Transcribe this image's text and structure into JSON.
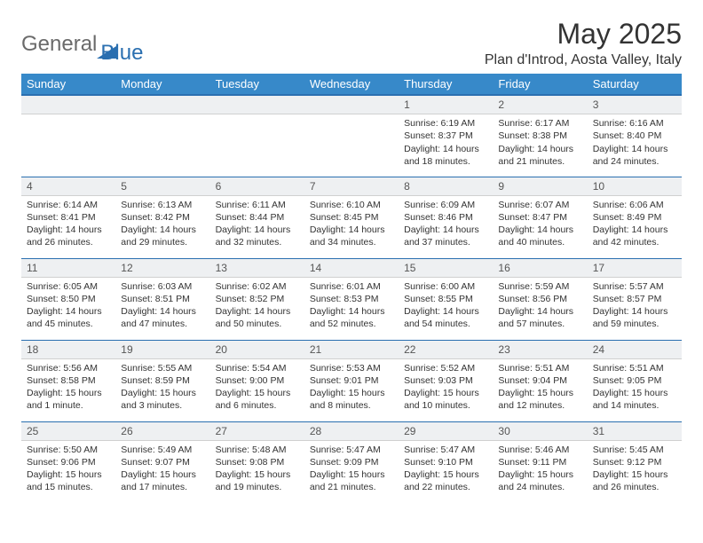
{
  "header": {
    "logo_general": "General",
    "logo_blue": "Blue",
    "month_title": "May 2025",
    "location": "Plan d'Introd, Aosta Valley, Italy"
  },
  "style": {
    "header_bg": "#3789c9",
    "header_border": "#2a6fb0",
    "daynum_bg": "#eef0f2",
    "text_color": "#333333",
    "logo_gray": "#6a6a6a",
    "logo_blue": "#2a6fb0",
    "body_bg": "#ffffff",
    "font_family": "Arial",
    "cell_font_size_pt": 8,
    "title_font_size_pt": 24
  },
  "calendar": {
    "day_headers": [
      "Sunday",
      "Monday",
      "Tuesday",
      "Wednesday",
      "Thursday",
      "Friday",
      "Saturday"
    ],
    "weeks": [
      [
        {
          "num": "",
          "sunrise": "",
          "sunset": "",
          "daylight": ""
        },
        {
          "num": "",
          "sunrise": "",
          "sunset": "",
          "daylight": ""
        },
        {
          "num": "",
          "sunrise": "",
          "sunset": "",
          "daylight": ""
        },
        {
          "num": "",
          "sunrise": "",
          "sunset": "",
          "daylight": ""
        },
        {
          "num": "1",
          "sunrise": "Sunrise: 6:19 AM",
          "sunset": "Sunset: 8:37 PM",
          "daylight": "Daylight: 14 hours and 18 minutes."
        },
        {
          "num": "2",
          "sunrise": "Sunrise: 6:17 AM",
          "sunset": "Sunset: 8:38 PM",
          "daylight": "Daylight: 14 hours and 21 minutes."
        },
        {
          "num": "3",
          "sunrise": "Sunrise: 6:16 AM",
          "sunset": "Sunset: 8:40 PM",
          "daylight": "Daylight: 14 hours and 24 minutes."
        }
      ],
      [
        {
          "num": "4",
          "sunrise": "Sunrise: 6:14 AM",
          "sunset": "Sunset: 8:41 PM",
          "daylight": "Daylight: 14 hours and 26 minutes."
        },
        {
          "num": "5",
          "sunrise": "Sunrise: 6:13 AM",
          "sunset": "Sunset: 8:42 PM",
          "daylight": "Daylight: 14 hours and 29 minutes."
        },
        {
          "num": "6",
          "sunrise": "Sunrise: 6:11 AM",
          "sunset": "Sunset: 8:44 PM",
          "daylight": "Daylight: 14 hours and 32 minutes."
        },
        {
          "num": "7",
          "sunrise": "Sunrise: 6:10 AM",
          "sunset": "Sunset: 8:45 PM",
          "daylight": "Daylight: 14 hours and 34 minutes."
        },
        {
          "num": "8",
          "sunrise": "Sunrise: 6:09 AM",
          "sunset": "Sunset: 8:46 PM",
          "daylight": "Daylight: 14 hours and 37 minutes."
        },
        {
          "num": "9",
          "sunrise": "Sunrise: 6:07 AM",
          "sunset": "Sunset: 8:47 PM",
          "daylight": "Daylight: 14 hours and 40 minutes."
        },
        {
          "num": "10",
          "sunrise": "Sunrise: 6:06 AM",
          "sunset": "Sunset: 8:49 PM",
          "daylight": "Daylight: 14 hours and 42 minutes."
        }
      ],
      [
        {
          "num": "11",
          "sunrise": "Sunrise: 6:05 AM",
          "sunset": "Sunset: 8:50 PM",
          "daylight": "Daylight: 14 hours and 45 minutes."
        },
        {
          "num": "12",
          "sunrise": "Sunrise: 6:03 AM",
          "sunset": "Sunset: 8:51 PM",
          "daylight": "Daylight: 14 hours and 47 minutes."
        },
        {
          "num": "13",
          "sunrise": "Sunrise: 6:02 AM",
          "sunset": "Sunset: 8:52 PM",
          "daylight": "Daylight: 14 hours and 50 minutes."
        },
        {
          "num": "14",
          "sunrise": "Sunrise: 6:01 AM",
          "sunset": "Sunset: 8:53 PM",
          "daylight": "Daylight: 14 hours and 52 minutes."
        },
        {
          "num": "15",
          "sunrise": "Sunrise: 6:00 AM",
          "sunset": "Sunset: 8:55 PM",
          "daylight": "Daylight: 14 hours and 54 minutes."
        },
        {
          "num": "16",
          "sunrise": "Sunrise: 5:59 AM",
          "sunset": "Sunset: 8:56 PM",
          "daylight": "Daylight: 14 hours and 57 minutes."
        },
        {
          "num": "17",
          "sunrise": "Sunrise: 5:57 AM",
          "sunset": "Sunset: 8:57 PM",
          "daylight": "Daylight: 14 hours and 59 minutes."
        }
      ],
      [
        {
          "num": "18",
          "sunrise": "Sunrise: 5:56 AM",
          "sunset": "Sunset: 8:58 PM",
          "daylight": "Daylight: 15 hours and 1 minute."
        },
        {
          "num": "19",
          "sunrise": "Sunrise: 5:55 AM",
          "sunset": "Sunset: 8:59 PM",
          "daylight": "Daylight: 15 hours and 3 minutes."
        },
        {
          "num": "20",
          "sunrise": "Sunrise: 5:54 AM",
          "sunset": "Sunset: 9:00 PM",
          "daylight": "Daylight: 15 hours and 6 minutes."
        },
        {
          "num": "21",
          "sunrise": "Sunrise: 5:53 AM",
          "sunset": "Sunset: 9:01 PM",
          "daylight": "Daylight: 15 hours and 8 minutes."
        },
        {
          "num": "22",
          "sunrise": "Sunrise: 5:52 AM",
          "sunset": "Sunset: 9:03 PM",
          "daylight": "Daylight: 15 hours and 10 minutes."
        },
        {
          "num": "23",
          "sunrise": "Sunrise: 5:51 AM",
          "sunset": "Sunset: 9:04 PM",
          "daylight": "Daylight: 15 hours and 12 minutes."
        },
        {
          "num": "24",
          "sunrise": "Sunrise: 5:51 AM",
          "sunset": "Sunset: 9:05 PM",
          "daylight": "Daylight: 15 hours and 14 minutes."
        }
      ],
      [
        {
          "num": "25",
          "sunrise": "Sunrise: 5:50 AM",
          "sunset": "Sunset: 9:06 PM",
          "daylight": "Daylight: 15 hours and 15 minutes."
        },
        {
          "num": "26",
          "sunrise": "Sunrise: 5:49 AM",
          "sunset": "Sunset: 9:07 PM",
          "daylight": "Daylight: 15 hours and 17 minutes."
        },
        {
          "num": "27",
          "sunrise": "Sunrise: 5:48 AM",
          "sunset": "Sunset: 9:08 PM",
          "daylight": "Daylight: 15 hours and 19 minutes."
        },
        {
          "num": "28",
          "sunrise": "Sunrise: 5:47 AM",
          "sunset": "Sunset: 9:09 PM",
          "daylight": "Daylight: 15 hours and 21 minutes."
        },
        {
          "num": "29",
          "sunrise": "Sunrise: 5:47 AM",
          "sunset": "Sunset: 9:10 PM",
          "daylight": "Daylight: 15 hours and 22 minutes."
        },
        {
          "num": "30",
          "sunrise": "Sunrise: 5:46 AM",
          "sunset": "Sunset: 9:11 PM",
          "daylight": "Daylight: 15 hours and 24 minutes."
        },
        {
          "num": "31",
          "sunrise": "Sunrise: 5:45 AM",
          "sunset": "Sunset: 9:12 PM",
          "daylight": "Daylight: 15 hours and 26 minutes."
        }
      ]
    ]
  }
}
